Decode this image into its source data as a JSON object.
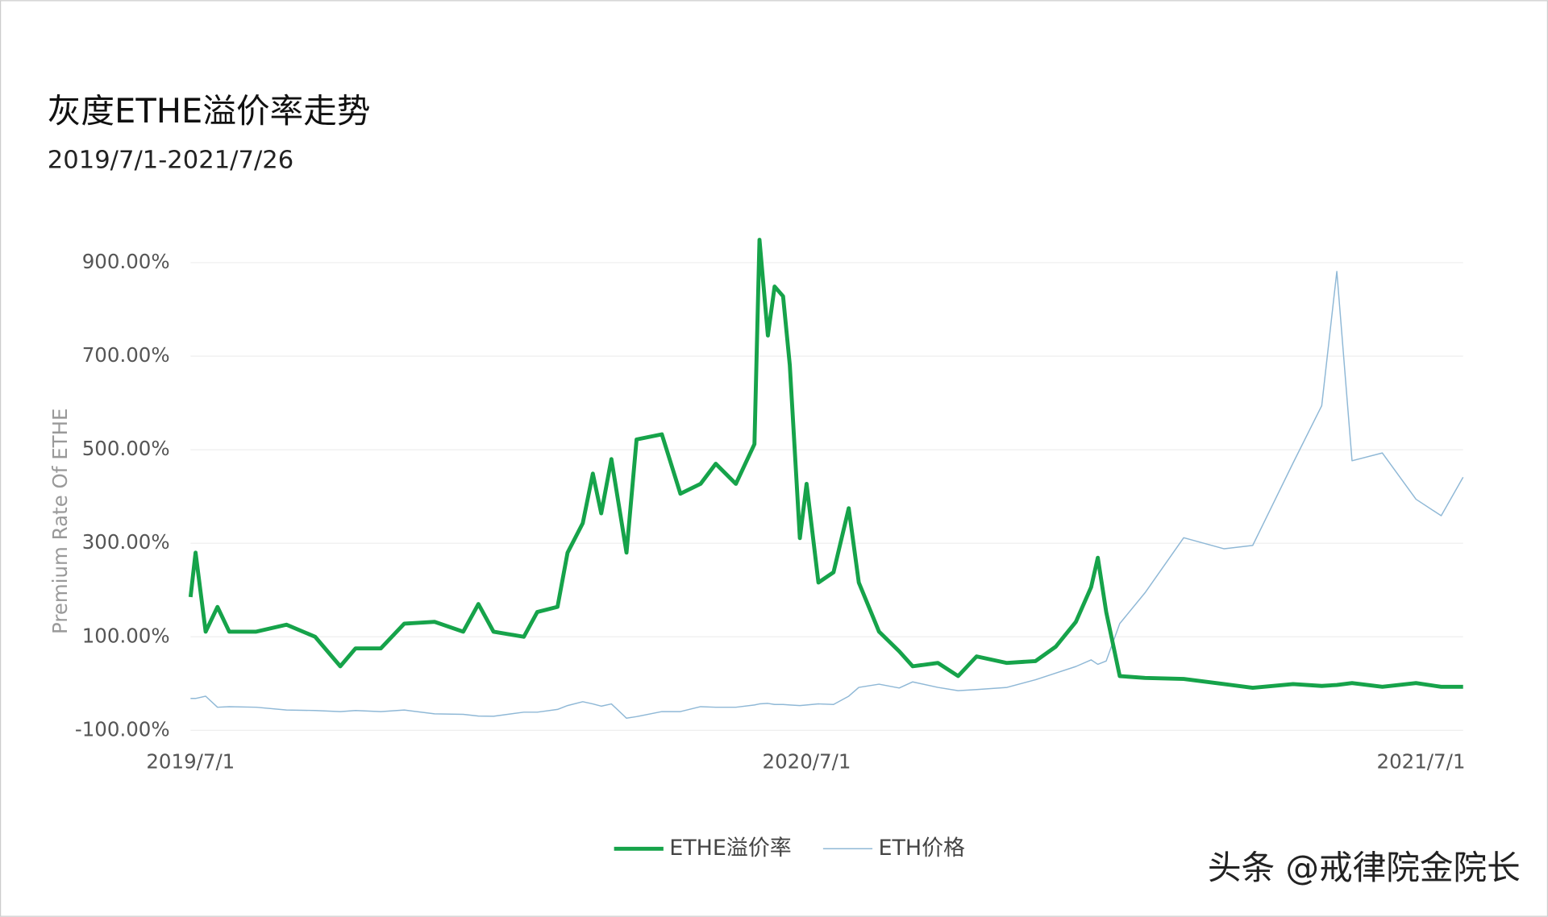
{
  "chart_data": {
    "type": "line",
    "title": "灰度ETHE溢价率走势",
    "subtitle": "2019/7/1-2021/7/26",
    "y_label": "Premium  Rate  Of  ETHE",
    "watermark": "头条 @戒律院金院长",
    "x": [
      "2019/7/1",
      "2019/7/4",
      "2019/7/10",
      "2019/7/17",
      "2019/7/24",
      "2019/8/9",
      "2019/8/27",
      "2019/9/13",
      "2019/9/28",
      "2019/10/7",
      "2019/10/22",
      "2019/11/5",
      "2019/11/23",
      "2019/12/10",
      "2019/12/19",
      "2019/12/28",
      "2020/1/15",
      "2020/1/23",
      "2020/2/4",
      "2020/2/10",
      "2020/2/19",
      "2020/2/25",
      "2020/3/1",
      "2020/3/7",
      "2020/3/16",
      "2020/3/22",
      "2020/4/6",
      "2020/4/17",
      "2020/4/29",
      "2020/5/8",
      "2020/5/20",
      "2020/5/31",
      "2020/6/3",
      "2020/6/8",
      "2020/6/12",
      "2020/6/17",
      "2020/6/21",
      "2020/6/27",
      "2020/7/1",
      "2020/7/8",
      "2020/7/17",
      "2020/7/26",
      "2020/8/1",
      "2020/8/13",
      "2020/8/25",
      "2020/9/2",
      "2020/9/17",
      "2020/9/29",
      "2020/10/10",
      "2020/10/28",
      "2020/11/14",
      "2020/11/26",
      "2020/12/8",
      "2020/12/17",
      "2020/12/21",
      "2020/12/26",
      "2021/1/3",
      "2021/1/18",
      "2021/2/10",
      "2021/3/6",
      "2021/3/23",
      "2021/4/16",
      "2021/5/3",
      "2021/5/12",
      "2021/5/21",
      "2021/6/8",
      "2021/6/28",
      "2021/7/13",
      "2021/7/26"
    ],
    "series": [
      {
        "name": "ETHE溢价率",
        "color": "#16a34a",
        "width": 4,
        "values": [
          185,
          280,
          111,
          164,
          111,
          111,
          126,
          100,
          37,
          75,
          75,
          128,
          132,
          111,
          170,
          111,
          100,
          153,
          164,
          280,
          343,
          449,
          364,
          480,
          280,
          522,
          533,
          406,
          427,
          470,
          427,
          512,
          949,
          744,
          849,
          828,
          681,
          311,
          427,
          216,
          238,
          375,
          216,
          111,
          69,
          37,
          44,
          16,
          58,
          44,
          48,
          79,
          132,
          206,
          269,
          153,
          16,
          12,
          10,
          -1,
          -9,
          -1,
          -5,
          -3,
          1,
          -7,
          1,
          -7,
          -7
        ]
      },
      {
        "name": "ETH价格",
        "color": "#8fb8d6",
        "width": 1.2,
        "axis": "y2",
        "values": [
          290,
          290,
          310,
          210,
          215,
          210,
          185,
          180,
          170,
          180,
          170,
          185,
          150,
          145,
          130,
          128,
          165,
          165,
          190,
          225,
          260,
          240,
          220,
          240,
          110,
          125,
          170,
          170,
          215,
          210,
          210,
          230,
          240,
          245,
          235,
          235,
          230,
          225,
          230,
          240,
          235,
          310,
          390,
          420,
          385,
          440,
          390,
          360,
          370,
          390,
          460,
          520,
          580,
          640,
          600,
          630,
          970,
          1250,
          1750,
          1650,
          1680,
          2430,
          2950,
          4170,
          2450,
          2520,
          2100,
          1950,
          2300
        ]
      }
    ],
    "xlim": [
      "2019/7/1",
      "2021/7/26"
    ],
    "xticks": [
      "2019/7/1",
      "2020/7/1",
      "2021/7/1"
    ],
    "ylim": [
      -100,
      900
    ],
    "yticks": [
      {
        "value": -100,
        "label": "-100.00%"
      },
      {
        "value": 100,
        "label": "100.00%"
      },
      {
        "value": 300,
        "label": "300.00%"
      },
      {
        "value": 500,
        "label": "500.00%"
      },
      {
        "value": 700,
        "label": "700.00%"
      },
      {
        "value": 900,
        "label": "900.00%"
      }
    ],
    "y2lim": [
      0,
      4250
    ],
    "grid": true
  }
}
